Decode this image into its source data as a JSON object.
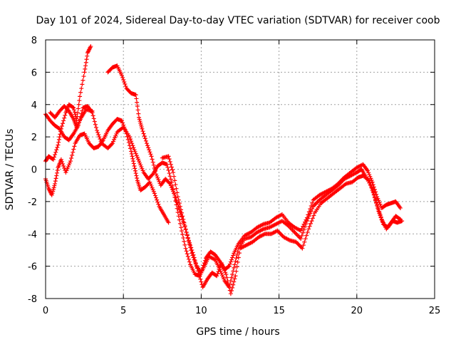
{
  "chart_data": {
    "type": "scatter",
    "title": "Day 101 of 2024, Sidereal Day-to-day VTEC variation (SDTVAR) for receiver coob",
    "xlabel": "GPS time / hours",
    "ylabel": "SDTVAR / TECUs",
    "xlim": [
      0,
      25
    ],
    "ylim": [
      -8,
      8
    ],
    "xticks": [
      "0",
      "5",
      "10",
      "15",
      "20",
      "25"
    ],
    "yticks": [
      "-8",
      "-6",
      "-4",
      "-2",
      "0",
      "2",
      "4",
      "6",
      "8"
    ],
    "grid": true,
    "marker": "plus",
    "color": "#ff0000",
    "series": [
      {
        "points": [
          [
            0.0,
            0.5
          ],
          [
            0.2,
            0.8
          ],
          [
            0.5,
            0.6
          ],
          [
            0.8,
            1.5
          ],
          [
            1.0,
            2.5
          ],
          [
            1.3,
            3.5
          ],
          [
            1.5,
            4.0
          ],
          [
            1.8,
            3.8
          ],
          [
            2.0,
            3.0
          ],
          [
            2.2,
            4.5
          ],
          [
            2.5,
            6.0
          ],
          [
            2.7,
            7.2
          ],
          [
            2.9,
            7.6
          ]
        ]
      },
      {
        "points": [
          [
            0.0,
            3.4
          ],
          [
            0.3,
            3.0
          ],
          [
            0.6,
            2.7
          ],
          [
            0.9,
            2.5
          ],
          [
            1.2,
            2.0
          ],
          [
            1.5,
            1.8
          ],
          [
            1.8,
            2.2
          ],
          [
            2.1,
            2.7
          ],
          [
            2.4,
            3.8
          ],
          [
            2.7,
            3.9
          ],
          [
            3.0,
            3.5
          ],
          [
            3.3,
            2.4
          ],
          [
            3.6,
            1.6
          ],
          [
            4.0,
            1.3
          ],
          [
            4.3,
            1.6
          ],
          [
            4.6,
            2.3
          ],
          [
            5.0,
            2.6
          ],
          [
            5.4,
            2.0
          ],
          [
            5.7,
            1.2
          ],
          [
            6.0,
            0.5
          ],
          [
            6.3,
            -0.2
          ],
          [
            6.6,
            -0.6
          ],
          [
            6.9,
            -0.3
          ],
          [
            7.2,
            0.2
          ],
          [
            7.5,
            0.4
          ],
          [
            7.8,
            0.3
          ],
          [
            8.1,
            -0.8
          ],
          [
            8.4,
            -2.2
          ],
          [
            8.7,
            -3.6
          ],
          [
            9.0,
            -4.9
          ],
          [
            9.3,
            -5.9
          ],
          [
            9.6,
            -6.5
          ],
          [
            9.9,
            -6.6
          ],
          [
            10.2,
            -6.0
          ],
          [
            10.5,
            -5.4
          ],
          [
            10.9,
            -5.6
          ],
          [
            11.2,
            -6.2
          ],
          [
            11.5,
            -6.9
          ],
          [
            11.8,
            -7.3
          ],
          [
            12.1,
            -6.1
          ],
          [
            12.4,
            -4.9
          ],
          [
            12.8,
            -4.3
          ],
          [
            13.2,
            -4.2
          ],
          [
            13.6,
            -3.9
          ],
          [
            14.0,
            -3.7
          ],
          [
            14.4,
            -3.6
          ],
          [
            14.8,
            -3.4
          ],
          [
            15.2,
            -3.2
          ],
          [
            15.6,
            -3.5
          ],
          [
            16.0,
            -3.9
          ],
          [
            16.4,
            -4.3
          ],
          [
            16.8,
            -3.2
          ],
          [
            17.2,
            -2.3
          ],
          [
            17.6,
            -1.9
          ],
          [
            18.0,
            -1.6
          ],
          [
            18.4,
            -1.3
          ],
          [
            18.8,
            -1.0
          ],
          [
            19.2,
            -0.6
          ],
          [
            19.6,
            -0.4
          ],
          [
            20.0,
            -0.2
          ],
          [
            20.3,
            0.0
          ],
          [
            20.6,
            -0.5
          ],
          [
            21.0,
            -1.2
          ],
          [
            21.3,
            -2.2
          ],
          [
            21.6,
            -3.1
          ],
          [
            21.9,
            -3.7
          ],
          [
            22.2,
            -3.3
          ],
          [
            22.5,
            -2.9
          ],
          [
            22.8,
            -3.1
          ]
        ]
      },
      {
        "points": [
          [
            0.0,
            -0.6
          ],
          [
            0.2,
            -1.2
          ],
          [
            0.4,
            -1.6
          ],
          [
            0.6,
            -0.9
          ],
          [
            0.8,
            0.1
          ],
          [
            1.0,
            0.6
          ],
          [
            1.3,
            -0.2
          ],
          [
            1.6,
            0.5
          ],
          [
            1.9,
            1.6
          ],
          [
            2.2,
            2.1
          ],
          [
            2.5,
            2.2
          ],
          [
            2.8,
            1.6
          ],
          [
            3.1,
            1.3
          ],
          [
            3.4,
            1.4
          ],
          [
            3.7,
            1.8
          ],
          [
            4.0,
            2.4
          ],
          [
            4.3,
            2.8
          ],
          [
            4.6,
            3.1
          ],
          [
            4.9,
            3.0
          ],
          [
            5.2,
            2.2
          ],
          [
            5.5,
            1.1
          ],
          [
            5.7,
            0.2
          ],
          [
            5.9,
            -0.7
          ],
          [
            6.1,
            -1.3
          ],
          [
            6.4,
            -1.1
          ],
          [
            6.7,
            -0.8
          ],
          [
            7.0,
            -1.5
          ],
          [
            7.3,
            -2.3
          ],
          [
            7.6,
            -2.8
          ],
          [
            7.9,
            -3.3
          ]
        ]
      },
      {
        "points": [
          [
            4.0,
            6.0
          ],
          [
            4.3,
            6.3
          ],
          [
            4.6,
            6.4
          ],
          [
            4.9,
            5.8
          ],
          [
            5.2,
            5.0
          ],
          [
            5.5,
            4.7
          ],
          [
            5.8,
            4.6
          ],
          [
            6.0,
            3.2
          ],
          [
            6.2,
            2.5
          ],
          [
            6.5,
            1.6
          ],
          [
            6.8,
            0.8
          ],
          [
            7.1,
            -0.3
          ],
          [
            7.4,
            -1.0
          ],
          [
            7.7,
            -0.6
          ],
          [
            8.0,
            -0.9
          ],
          [
            8.3,
            -1.6
          ],
          [
            8.6,
            -2.5
          ],
          [
            8.9,
            -3.4
          ],
          [
            9.2,
            -4.4
          ],
          [
            9.5,
            -5.3
          ],
          [
            9.8,
            -6.3
          ],
          [
            10.1,
            -7.3
          ],
          [
            10.4,
            -6.8
          ],
          [
            10.7,
            -6.4
          ],
          [
            11.0,
            -6.6
          ],
          [
            11.3,
            -5.8
          ],
          [
            11.6,
            -6.5
          ],
          [
            11.9,
            -7.7
          ],
          [
            12.2,
            -6.6
          ],
          [
            12.5,
            -4.9
          ],
          [
            12.9,
            -4.7
          ],
          [
            13.3,
            -4.5
          ],
          [
            13.7,
            -4.2
          ],
          [
            14.1,
            -4.0
          ],
          [
            14.5,
            -4.0
          ],
          [
            14.9,
            -3.8
          ],
          [
            15.3,
            -4.2
          ],
          [
            15.7,
            -4.4
          ],
          [
            16.1,
            -4.5
          ],
          [
            16.5,
            -4.9
          ],
          [
            16.9,
            -3.7
          ],
          [
            17.3,
            -2.7
          ],
          [
            17.7,
            -2.1
          ],
          [
            18.1,
            -1.8
          ],
          [
            18.5,
            -1.5
          ],
          [
            18.9,
            -1.2
          ],
          [
            19.3,
            -0.9
          ],
          [
            19.7,
            -0.8
          ],
          [
            20.1,
            -0.5
          ],
          [
            20.4,
            -0.4
          ],
          [
            20.8,
            -0.7
          ],
          [
            21.1,
            -1.6
          ],
          [
            21.4,
            -2.6
          ],
          [
            21.7,
            -3.4
          ],
          [
            22.0,
            -3.6
          ],
          [
            22.3,
            -3.2
          ],
          [
            22.6,
            -3.3
          ],
          [
            22.9,
            -3.2
          ]
        ]
      },
      {
        "points": [
          [
            0.3,
            3.5
          ],
          [
            0.6,
            3.2
          ],
          [
            0.9,
            3.6
          ],
          [
            1.2,
            3.9
          ],
          [
            1.5,
            3.6
          ],
          [
            1.8,
            3.1
          ],
          [
            2.0,
            2.6
          ],
          [
            2.3,
            3.2
          ],
          [
            2.6,
            3.7
          ],
          [
            3.0,
            3.6
          ],
          [
            7.5,
            0.7
          ],
          [
            7.9,
            0.8
          ],
          [
            8.2,
            -0.2
          ],
          [
            8.5,
            -1.7
          ],
          [
            8.8,
            -2.9
          ],
          [
            9.1,
            -4.1
          ],
          [
            9.4,
            -5.2
          ],
          [
            9.7,
            -6.0
          ],
          [
            10.0,
            -6.4
          ],
          [
            10.3,
            -5.5
          ],
          [
            10.6,
            -5.1
          ],
          [
            10.9,
            -5.3
          ],
          [
            11.2,
            -5.7
          ],
          [
            11.5,
            -6.2
          ],
          [
            11.8,
            -6.0
          ],
          [
            12.1,
            -5.2
          ],
          [
            12.4,
            -4.6
          ],
          [
            12.8,
            -4.1
          ],
          [
            13.2,
            -3.9
          ],
          [
            13.6,
            -3.6
          ],
          [
            14.0,
            -3.4
          ],
          [
            14.4,
            -3.3
          ],
          [
            14.8,
            -3.0
          ],
          [
            15.2,
            -2.8
          ],
          [
            15.6,
            -3.3
          ],
          [
            16.0,
            -3.6
          ],
          [
            16.4,
            -3.8
          ],
          [
            16.8,
            -3.0
          ],
          [
            17.2,
            -1.9
          ],
          [
            17.6,
            -1.6
          ],
          [
            18.0,
            -1.4
          ],
          [
            18.4,
            -1.2
          ],
          [
            18.8,
            -0.9
          ],
          [
            19.2,
            -0.5
          ],
          [
            19.6,
            -0.2
          ],
          [
            20.0,
            0.1
          ],
          [
            20.4,
            0.3
          ],
          [
            20.7,
            -0.1
          ],
          [
            21.0,
            -0.8
          ],
          [
            21.3,
            -1.7
          ],
          [
            21.6,
            -2.4
          ],
          [
            21.9,
            -2.2
          ],
          [
            22.2,
            -2.1
          ],
          [
            22.5,
            -2.0
          ],
          [
            22.8,
            -2.4
          ]
        ]
      }
    ]
  }
}
